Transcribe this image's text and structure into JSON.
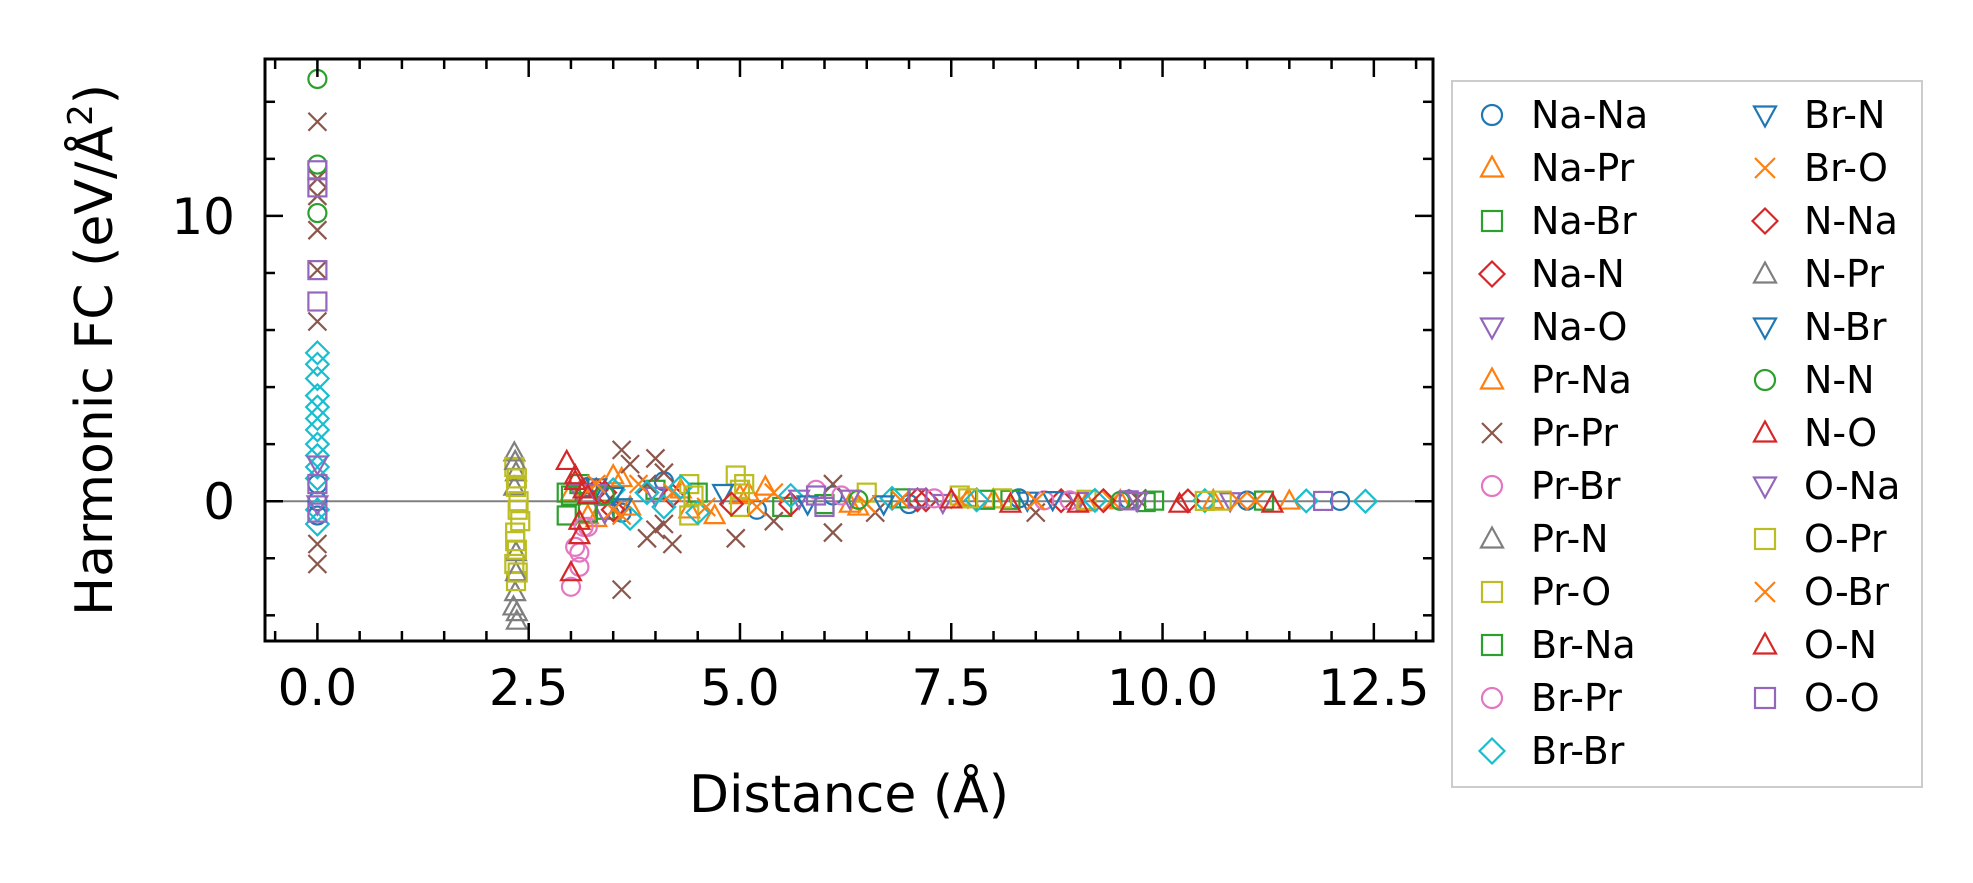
{
  "chart_data": {
    "type": "scatter",
    "title": "",
    "xlabel": "Distance (Å)",
    "ylabel_main": "Harmonic FC (eV/Å",
    "ylabel_sup": "2",
    "ylabel_close": ")",
    "xlim": [
      -0.62,
      13.2
    ],
    "ylim": [
      -4.9,
      15.5
    ],
    "xticks": [
      0.0,
      2.5,
      5.0,
      7.5,
      10.0,
      12.5
    ],
    "xtick_labels": [
      "0.0",
      "2.5",
      "5.0",
      "7.5",
      "10.0",
      "12.5"
    ],
    "yticks": [
      0,
      10
    ],
    "ytick_labels": [
      "0",
      "10"
    ],
    "reference_line_y": 0,
    "legend_position": "outside-right",
    "series": [
      {
        "name": "Na-Na",
        "marker": "o",
        "color": "#1f77b4",
        "points": [
          [
            0,
            0
          ],
          [
            0,
            0.6
          ],
          [
            0,
            -0.5
          ],
          [
            3.2,
            0.5
          ],
          [
            3.6,
            -0.4
          ],
          [
            4.1,
            0.7
          ],
          [
            5.2,
            -0.3
          ],
          [
            6.1,
            0.2
          ],
          [
            7.0,
            -0.1
          ],
          [
            8.3,
            0.1
          ],
          [
            9.6,
            0.05
          ],
          [
            11.0,
            0.02
          ],
          [
            12.1,
            0.01
          ]
        ]
      },
      {
        "name": "Na-Pr",
        "marker": "^",
        "color": "#ff7f0e",
        "points": [
          [
            3.0,
            0.3
          ],
          [
            3.3,
            -0.6
          ],
          [
            3.5,
            0.9
          ],
          [
            3.7,
            -0.2
          ],
          [
            4.3,
            0.4
          ],
          [
            4.7,
            -0.5
          ],
          [
            5.0,
            0.2
          ],
          [
            5.3,
            0.5
          ],
          [
            6.4,
            -0.2
          ],
          [
            7.7,
            0.1
          ],
          [
            9.1,
            -0.05
          ],
          [
            10.6,
            0.03
          ]
        ]
      },
      {
        "name": "Na-Br",
        "marker": "s",
        "color": "#2ca02c",
        "points": [
          [
            2.95,
            0.3
          ],
          [
            2.95,
            -0.5
          ],
          [
            3.1,
            0.6
          ],
          [
            3.4,
            -0.3
          ],
          [
            4.0,
            0.4
          ],
          [
            5.5,
            -0.2
          ],
          [
            6.9,
            0.1
          ],
          [
            8.2,
            0.05
          ],
          [
            9.8,
            -0.03
          ],
          [
            11.2,
            0.02
          ]
        ]
      },
      {
        "name": "Na-N",
        "marker": "D",
        "color": "#d62728",
        "points": [
          [
            3.3,
            0.4
          ],
          [
            3.5,
            -0.3
          ],
          [
            4.2,
            0.2
          ],
          [
            5.6,
            -0.1
          ],
          [
            7.2,
            0.05
          ],
          [
            8.8,
            0.02
          ],
          [
            10.3,
            0.01
          ]
        ]
      },
      {
        "name": "Na-O",
        "marker": "v",
        "color": "#9467bd",
        "points": [
          [
            3.1,
            0.3
          ],
          [
            3.4,
            -0.4
          ],
          [
            4.0,
            0.2
          ],
          [
            5.7,
            0.1
          ],
          [
            7.4,
            -0.05
          ],
          [
            9.0,
            0.02
          ],
          [
            10.8,
            0.01
          ]
        ]
      },
      {
        "name": "Pr-Na",
        "marker": "^",
        "color": "#ff7f0e",
        "points": [
          [
            3.2,
            -0.5
          ],
          [
            3.6,
            0.8
          ],
          [
            4.4,
            -0.3
          ],
          [
            5.1,
            0.3
          ],
          [
            6.3,
            -0.1
          ],
          [
            8.0,
            0.05
          ],
          [
            9.5,
            0.02
          ],
          [
            11.5,
            0.01
          ]
        ]
      },
      {
        "name": "Pr-Pr",
        "marker": "x",
        "color": "#8c564b",
        "points": [
          [
            0,
            13.3
          ],
          [
            0,
            11.3
          ],
          [
            0,
            10.7
          ],
          [
            0,
            9.5
          ],
          [
            0,
            8.1
          ],
          [
            0,
            6.3
          ],
          [
            0,
            -2.2
          ],
          [
            0,
            -1.5
          ],
          [
            3.6,
            1.8
          ],
          [
            3.7,
            1.3
          ],
          [
            3.6,
            -3.1
          ],
          [
            4.0,
            1.5
          ],
          [
            4.1,
            1.0
          ],
          [
            3.9,
            0.6
          ],
          [
            4.0,
            -1.0
          ],
          [
            4.2,
            -1.5
          ],
          [
            3.9,
            -1.3
          ],
          [
            4.1,
            -0.8
          ],
          [
            4.95,
            -1.3
          ],
          [
            5.4,
            -0.7
          ],
          [
            6.1,
            0.6
          ],
          [
            6.1,
            -1.1
          ],
          [
            6.6,
            -0.4
          ],
          [
            8.5,
            -0.4
          ],
          [
            9.7,
            0.1
          ]
        ]
      },
      {
        "name": "Pr-Br",
        "marker": "o",
        "color": "#e377c2",
        "points": [
          [
            3.0,
            -3.0
          ],
          [
            3.1,
            -2.3
          ],
          [
            3.05,
            -1.6
          ],
          [
            3.2,
            -0.9
          ],
          [
            5.9,
            0.4
          ],
          [
            7.3,
            0.1
          ],
          [
            8.9,
            0.03
          ]
        ]
      },
      {
        "name": "Pr-N",
        "marker": "^",
        "color": "#7f7f7f",
        "points": [
          [
            2.33,
            1.7
          ],
          [
            2.35,
            1.0
          ],
          [
            2.34,
            -3.2
          ],
          [
            2.32,
            -3.7
          ],
          [
            2.36,
            -4.2
          ],
          [
            2.33,
            0.5
          ],
          [
            2.35,
            -1.8
          ]
        ]
      },
      {
        "name": "Pr-O",
        "marker": "s",
        "color": "#bcbd22",
        "points": [
          [
            2.33,
            1.2
          ],
          [
            2.35,
            0.5
          ],
          [
            2.37,
            -0.3
          ],
          [
            2.34,
            -1.1
          ],
          [
            2.36,
            -1.7
          ],
          [
            2.33,
            -2.2
          ],
          [
            2.35,
            -2.8
          ],
          [
            2.38,
            0.0
          ],
          [
            2.4,
            -0.7
          ],
          [
            4.4,
            0.6
          ],
          [
            4.4,
            -0.5
          ],
          [
            4.95,
            0.9
          ],
          [
            5.0,
            0.4
          ],
          [
            5.0,
            -0.2
          ],
          [
            6.5,
            0.3
          ],
          [
            7.6,
            0.2
          ],
          [
            8.1,
            0.1
          ],
          [
            9.1,
            0.05
          ],
          [
            10.7,
            0.02
          ]
        ]
      },
      {
        "name": "Br-Na",
        "marker": "s",
        "color": "#2ca02c",
        "points": [
          [
            3.0,
            0.2
          ],
          [
            3.2,
            -0.4
          ],
          [
            4.5,
            0.3
          ],
          [
            6.0,
            -0.1
          ],
          [
            7.9,
            0.05
          ],
          [
            9.9,
            0.02
          ]
        ]
      },
      {
        "name": "Br-Pr",
        "marker": "o",
        "color": "#e377c2",
        "points": [
          [
            3.1,
            -1.8
          ],
          [
            3.15,
            -0.9
          ],
          [
            6.2,
            0.2
          ],
          [
            8.6,
            0.03
          ]
        ]
      },
      {
        "name": "Br-Br",
        "marker": "D",
        "color": "#17becf",
        "points": [
          [
            0,
            5.2
          ],
          [
            0,
            4.8
          ],
          [
            0,
            4.3
          ],
          [
            0,
            3.7
          ],
          [
            0,
            3.3
          ],
          [
            0,
            2.9
          ],
          [
            0,
            2.5
          ],
          [
            0,
            2.0
          ],
          [
            0,
            1.6
          ],
          [
            0,
            1.2
          ],
          [
            0,
            0.8
          ],
          [
            0,
            -0.3
          ],
          [
            0,
            -0.8
          ],
          [
            3.5,
            0.4
          ],
          [
            3.7,
            -0.6
          ],
          [
            3.9,
            0.3
          ],
          [
            4.1,
            -0.2
          ],
          [
            4.3,
            0.5
          ],
          [
            4.5,
            -0.4
          ],
          [
            5.6,
            0.2
          ],
          [
            6.8,
            0.1
          ],
          [
            7.8,
            0.05
          ],
          [
            9.2,
            0.03
          ],
          [
            10.5,
            0.02
          ],
          [
            11.7,
            0.01
          ],
          [
            12.4,
            0.0
          ]
        ]
      },
      {
        "name": "Br-N",
        "marker": "v",
        "color": "#1f77b4",
        "points": [
          [
            3.3,
            0.5
          ],
          [
            3.6,
            -0.2
          ],
          [
            4.8,
            0.3
          ],
          [
            6.7,
            -0.1
          ],
          [
            8.7,
            0.05
          ]
        ]
      },
      {
        "name": "Br-O",
        "marker": "x",
        "color": "#ff7f0e",
        "points": [
          [
            3.2,
            0.4
          ],
          [
            3.5,
            -0.3
          ],
          [
            3.8,
            0.6
          ],
          [
            4.6,
            -0.2
          ],
          [
            5.4,
            0.3
          ],
          [
            6.5,
            -0.1
          ],
          [
            7.6,
            0.05
          ],
          [
            9.4,
            0.02
          ],
          [
            11.1,
            0.01
          ]
        ]
      },
      {
        "name": "N-Na",
        "marker": "D",
        "color": "#d62728",
        "points": [
          [
            3.4,
            0.3
          ],
          [
            4.9,
            -0.1
          ],
          [
            7.1,
            0.05
          ],
          [
            9.3,
            0.02
          ]
        ]
      },
      {
        "name": "N-Pr",
        "marker": "^",
        "color": "#7f7f7f",
        "points": [
          [
            2.34,
            1.4
          ],
          [
            2.36,
            -3.9
          ],
          [
            2.35,
            -2.5
          ]
        ]
      },
      {
        "name": "N-Br",
        "marker": "v",
        "color": "#1f77b4",
        "points": [
          [
            3.5,
            0.2
          ],
          [
            5.8,
            -0.1
          ],
          [
            8.4,
            0.03
          ]
        ]
      },
      {
        "name": "N-N",
        "marker": "o",
        "color": "#2ca02c",
        "points": [
          [
            0,
            14.8
          ],
          [
            0,
            11.8
          ],
          [
            0,
            10.1
          ],
          [
            3.4,
            0.2
          ],
          [
            6.4,
            0.05
          ],
          [
            9.5,
            0.01
          ]
        ]
      },
      {
        "name": "N-O",
        "marker": "^",
        "color": "#d62728",
        "points": [
          [
            2.95,
            1.4
          ],
          [
            3.0,
            -2.5
          ],
          [
            3.05,
            0.9
          ],
          [
            3.1,
            -1.2
          ],
          [
            3.15,
            0.4
          ],
          [
            8.2,
            -0.1
          ],
          [
            9.0,
            -0.1
          ],
          [
            10.2,
            -0.1
          ],
          [
            11.3,
            -0.1
          ]
        ]
      },
      {
        "name": "O-Na",
        "marker": "v",
        "color": "#9467bd",
        "points": [
          [
            0,
            1.3
          ],
          [
            0,
            -0.1
          ],
          [
            3.3,
            0.3
          ],
          [
            6.3,
            0.1
          ],
          [
            9.7,
            0.02
          ]
        ]
      },
      {
        "name": "O-Pr",
        "marker": "s",
        "color": "#bcbd22",
        "points": [
          [
            2.36,
            0.8
          ],
          [
            2.34,
            -1.4
          ],
          [
            2.37,
            -2.5
          ],
          [
            4.45,
            0.2
          ],
          [
            5.05,
            0.6
          ],
          [
            7.7,
            0.1
          ],
          [
            10.5,
            0.01
          ]
        ]
      },
      {
        "name": "O-Br",
        "marker": "x",
        "color": "#ff7f0e",
        "points": [
          [
            3.3,
            0.6
          ],
          [
            3.6,
            -0.5
          ],
          [
            4.2,
            0.3
          ],
          [
            5.2,
            -0.2
          ],
          [
            6.9,
            0.05
          ],
          [
            8.5,
            0.02
          ],
          [
            10.9,
            0.01
          ]
        ]
      },
      {
        "name": "O-N",
        "marker": "^",
        "color": "#d62728",
        "points": [
          [
            3.05,
            0.7
          ],
          [
            3.1,
            -0.7
          ],
          [
            3.2,
            0.2
          ],
          [
            7.5,
            0.05
          ]
        ]
      },
      {
        "name": "O-O",
        "marker": "s",
        "color": "#9467bd",
        "points": [
          [
            0,
            11.6
          ],
          [
            0,
            11.0
          ],
          [
            0,
            8.1
          ],
          [
            0,
            7.0
          ],
          [
            0,
            0.6
          ],
          [
            0,
            -0.4
          ],
          [
            5.9,
            0.2
          ],
          [
            6.0,
            -0.2
          ],
          [
            7.1,
            0.1
          ],
          [
            9.6,
            0.03
          ],
          [
            11.9,
            0.01
          ]
        ]
      }
    ]
  }
}
